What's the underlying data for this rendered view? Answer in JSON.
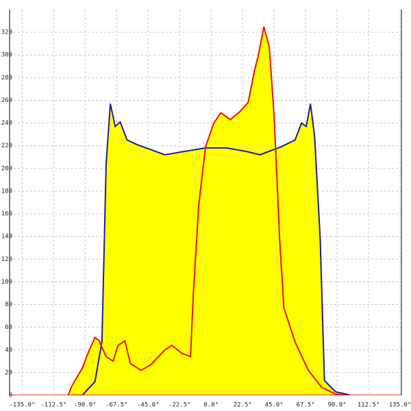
{
  "chart_data": {
    "type": "area",
    "xlim": [
      -144,
      136
    ],
    "ylim": [
      0,
      340
    ],
    "xticks": [
      {
        "value": -135,
        "label": "-135.0°"
      },
      {
        "value": -112.5,
        "label": "-112.5°"
      },
      {
        "value": -90,
        "label": "-90.0°"
      },
      {
        "value": -67.5,
        "label": "-67.5°"
      },
      {
        "value": -45,
        "label": "-45.0°"
      },
      {
        "value": -22.5,
        "label": "-22.5°"
      },
      {
        "value": 0,
        "label": "0.0°"
      },
      {
        "value": 22.5,
        "label": "22.5°"
      },
      {
        "value": 45,
        "label": "45.0°"
      },
      {
        "value": 67.5,
        "label": "67.5°"
      },
      {
        "value": 90,
        "label": "90.0°"
      },
      {
        "value": 112.5,
        "label": "112.5°"
      },
      {
        "value": 135,
        "label": "135.0°"
      }
    ],
    "yticks": [
      0,
      20,
      40,
      60,
      80,
      100,
      120,
      140,
      160,
      180,
      200,
      220,
      240,
      260,
      280,
      300,
      320
    ],
    "grid": true,
    "fill": "#ffff00",
    "baseline_color": "#ff0000",
    "series": [
      {
        "color": "#1a1aa8",
        "x": [
          -100,
          -92,
          -83,
          -78,
          -75,
          -72,
          -68.5,
          -65,
          -60,
          -53,
          -33,
          -19,
          -4,
          11,
          25,
          35,
          50,
          60,
          64.6,
          68,
          71,
          74,
          78,
          81,
          89,
          100
        ],
        "values": [
          0,
          0,
          12,
          47,
          204,
          257,
          237,
          241,
          225,
          221,
          212,
          215,
          218,
          218,
          215,
          212,
          219,
          225,
          240,
          237,
          257,
          228,
          137,
          13,
          3,
          0
        ]
      },
      {
        "color": "#ee1111",
        "x": [
          -102,
          -100,
          -92,
          -88,
          -83,
          -80,
          -75,
          -70,
          -66.5,
          -61.6,
          -57.7,
          -50,
          -43,
          -33,
          -28,
          -21,
          -14.7,
          -12.7,
          -8.8,
          -4,
          2,
          7,
          13.7,
          20.5,
          26.4,
          31,
          34,
          37.7,
          41.6,
          45,
          49,
          52,
          60,
          69.5,
          79,
          89,
          96
        ],
        "values": [
          0,
          7,
          24,
          37,
          51,
          48,
          34,
          30,
          44,
          48,
          28,
          22,
          27,
          40,
          44,
          37,
          34,
          89,
          168,
          219,
          240,
          249,
          243,
          250,
          258,
          286,
          301,
          325,
          307,
          247,
          137,
          77,
          47,
          22,
          7,
          1,
          0
        ]
      }
    ]
  }
}
